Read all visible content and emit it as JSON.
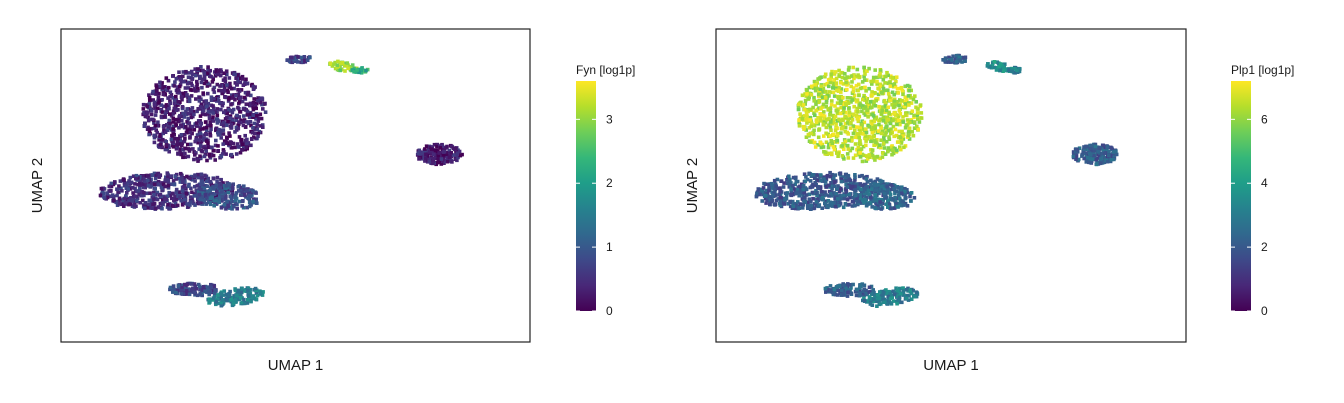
{
  "figure": {
    "background": "#ffffff"
  },
  "colormap": [
    "#440154",
    "#482878",
    "#3e4989",
    "#31688e",
    "#26828e",
    "#1f9e89",
    "#35b779",
    "#6ece58",
    "#b5de2b",
    "#fde725"
  ],
  "chart_data": [
    {
      "type": "scatter",
      "subtype": "umap-hexbin-embedding",
      "xlabel": "UMAP 1",
      "ylabel": "UMAP 2",
      "x_ticks": "none",
      "y_ticks": "none",
      "grid": false,
      "colorbar": {
        "title": "Fyn [log1p]",
        "range": [
          0,
          3.6
        ],
        "ticks": [
          0,
          1,
          2,
          3
        ],
        "tick_labels": [
          "0",
          "1",
          "2",
          "3"
        ],
        "placement": "right"
      },
      "clusters": [
        {
          "name": "",
          "center": [
            -3.6,
            3.2
          ],
          "mean_value": 0.35
        },
        {
          "name": "",
          "center": [
            -5.2,
            -1.0
          ],
          "mean_value": 0.5
        },
        {
          "name": "",
          "center": [
            -2.6,
            -1.3
          ],
          "mean_value": 0.9
        },
        {
          "name": "",
          "center": [
            -4.0,
            -6.4
          ],
          "mean_value": 0.8
        },
        {
          "name": "",
          "center": [
            -2.3,
            -6.8
          ],
          "mean_value": 1.5
        },
        {
          "name": "",
          "center": [
            6.2,
            1.0
          ],
          "mean_value": 0.3
        },
        {
          "name": "",
          "center": [
            0.4,
            6.2
          ],
          "mean_value": 0.7
        },
        {
          "name": "",
          "center": [
            2.2,
            5.8
          ],
          "mean_value": 3.0
        },
        {
          "name": "",
          "center": [
            2.9,
            5.6
          ],
          "mean_value": 2.2
        }
      ]
    },
    {
      "type": "scatter",
      "subtype": "umap-hexbin-embedding",
      "xlabel": "UMAP 1",
      "ylabel": "UMAP 2",
      "x_ticks": "none",
      "y_ticks": "none",
      "grid": false,
      "colorbar": {
        "title": "Plp1 [log1p]",
        "range": [
          0,
          7.2
        ],
        "ticks": [
          0,
          2,
          4,
          6
        ],
        "tick_labels": [
          "0",
          "2",
          "4",
          "6"
        ],
        "placement": "right"
      },
      "clusters": [
        {
          "name": "",
          "center": [
            -3.6,
            3.2
          ],
          "mean_value": 6.4
        },
        {
          "name": "",
          "center": [
            -5.2,
            -1.0
          ],
          "mean_value": 2.0
        },
        {
          "name": "",
          "center": [
            -2.6,
            -1.3
          ],
          "mean_value": 2.3
        },
        {
          "name": "",
          "center": [
            -4.0,
            -6.4
          ],
          "mean_value": 2.2
        },
        {
          "name": "",
          "center": [
            -2.3,
            -6.8
          ],
          "mean_value": 3.0
        },
        {
          "name": "",
          "center": [
            6.2,
            1.0
          ],
          "mean_value": 2.1
        },
        {
          "name": "",
          "center": [
            0.4,
            6.2
          ],
          "mean_value": 2.2
        },
        {
          "name": "",
          "center": [
            2.2,
            5.8
          ],
          "mean_value": 3.6
        },
        {
          "name": "",
          "center": [
            2.9,
            5.6
          ],
          "mean_value": 3.0
        }
      ]
    }
  ]
}
